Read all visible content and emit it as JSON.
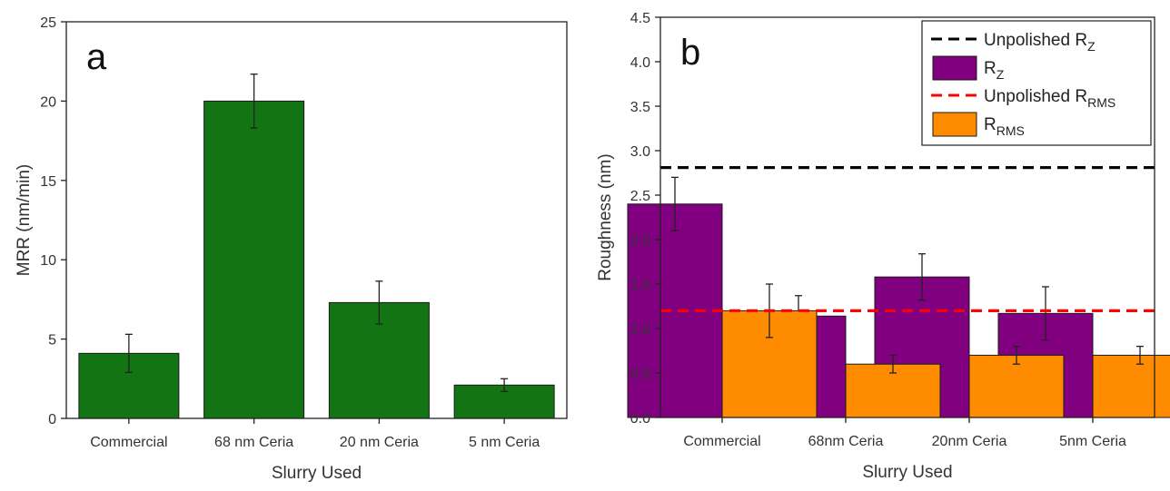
{
  "chart_data": [
    {
      "type": "bar",
      "panel_label": "a",
      "xlabel": "Slurry Used",
      "ylabel": "MRR (nm/min)",
      "ylim": [
        0,
        25
      ],
      "yticks": [
        0,
        5,
        10,
        15,
        20,
        25
      ],
      "categories": [
        "Commercial",
        "68 nm Ceria",
        "20 nm Ceria",
        "5 nm Ceria"
      ],
      "series": [
        {
          "color": "#137413",
          "values": [
            4.1,
            20.0,
            7.3,
            2.1
          ],
          "errors": [
            1.2,
            1.7,
            1.35,
            0.4
          ]
        }
      ]
    },
    {
      "type": "bar",
      "panel_label": "b",
      "xlabel": "Slurry Used",
      "ylabel": "Roughness (nm)",
      "ylim": [
        0,
        4.5
      ],
      "yticks": [
        "0.0",
        "0.5",
        "1.0",
        "1.5",
        "2.0",
        "2.5",
        "3.0",
        "3.5",
        "4.0",
        "4.5"
      ],
      "categories": [
        "Commercial",
        "68nm Ceria",
        "20nm Ceria",
        "5nm Ceria"
      ],
      "legend_position": "top-right",
      "series": [
        {
          "name_main": "R",
          "name_sub": "Z",
          "color": "#800080",
          "values": [
            2.4,
            1.14,
            1.58,
            1.17
          ],
          "errors": [
            0.3,
            0.23,
            0.26,
            0.3
          ]
        },
        {
          "name_main": "R",
          "name_sub": "RMS",
          "color": "#FF8C00",
          "values": [
            1.2,
            0.6,
            0.7,
            0.7
          ],
          "errors": [
            0.3,
            0.1,
            0.1,
            0.1
          ]
        }
      ],
      "reference_lines": [
        {
          "name_main": "Unpolished R",
          "name_sub": "Z",
          "value": 2.81,
          "color": "#000000"
        },
        {
          "name_main": "Unpolished R",
          "name_sub": "RMS",
          "value": 1.2,
          "color": "#FF0000"
        }
      ],
      "legend_order": [
        "ref0",
        "s0",
        "ref1",
        "s1"
      ]
    }
  ]
}
